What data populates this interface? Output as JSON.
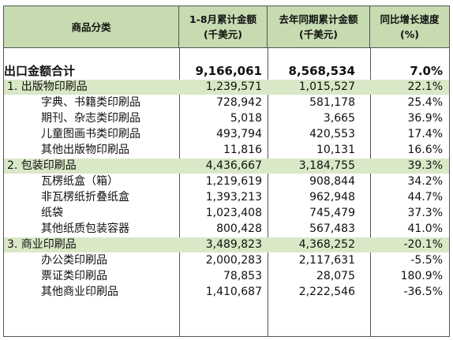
{
  "header": {
    "col1": "商品分类",
    "col2_line1": "1-8月累计金额",
    "col2_line2": "(千美元)",
    "col3_line1": "去年同期累计金额",
    "col3_line2": "(千美元)",
    "col4_line1": "同比增长速度",
    "col4_line2": "(%)"
  },
  "rows": [
    {
      "name": "出口金额合计",
      "current": "9,166,061",
      "previous": "8,568,534",
      "growth": "7.0%"
    },
    {
      "name": "1. 出版物印刷品",
      "current": "1,239,571",
      "previous": "1,015,527",
      "growth": "22.1%"
    },
    {
      "name": "字典、书籍类印刷品",
      "current": "728,942",
      "previous": "581,178",
      "growth": "25.4%"
    },
    {
      "name": "期刊、杂志类印刷品",
      "current": "5,018",
      "previous": "3,665",
      "growth": "36.9%"
    },
    {
      "name": "儿童图画书类印刷品",
      "current": "493,794",
      "previous": "420,553",
      "growth": "17.4%"
    },
    {
      "name": "其他出版物印刷品",
      "current": "11,816",
      "previous": "10,131",
      "growth": "16.6%"
    },
    {
      "name": "2. 包装印刷品",
      "current": "4,436,667",
      "previous": "3,184,755",
      "growth": "39.3%"
    },
    {
      "name": "瓦楞纸盒（箱）",
      "current": "1,219,619",
      "previous": "908,844",
      "growth": "34.2%"
    },
    {
      "name": "非瓦楞纸折叠纸盒",
      "current": "1,393,213",
      "previous": "962,948",
      "growth": "44.7%"
    },
    {
      "name": "纸袋",
      "current": "1,023,408",
      "previous": "745,479",
      "growth": "37.3%"
    },
    {
      "name": "其他纸质包装容器",
      "current": "800,428",
      "previous": "567,483",
      "growth": "41.0%"
    },
    {
      "name": "3. 商业印刷品",
      "current": "3,489,823",
      "previous": "4,368,252",
      "growth": "-20.1%"
    },
    {
      "name": "办公类印刷品",
      "current": "2,000,283",
      "previous": "2,117,631",
      "growth": "-5.5%"
    },
    {
      "name": "票证类印刷品",
      "current": "78,853",
      "previous": "28,075",
      "growth": "180.9%"
    },
    {
      "name": "其他商业印刷品",
      "current": "1,410,687",
      "previous": "2,222,546",
      "growth": "-36.5%"
    }
  ]
}
